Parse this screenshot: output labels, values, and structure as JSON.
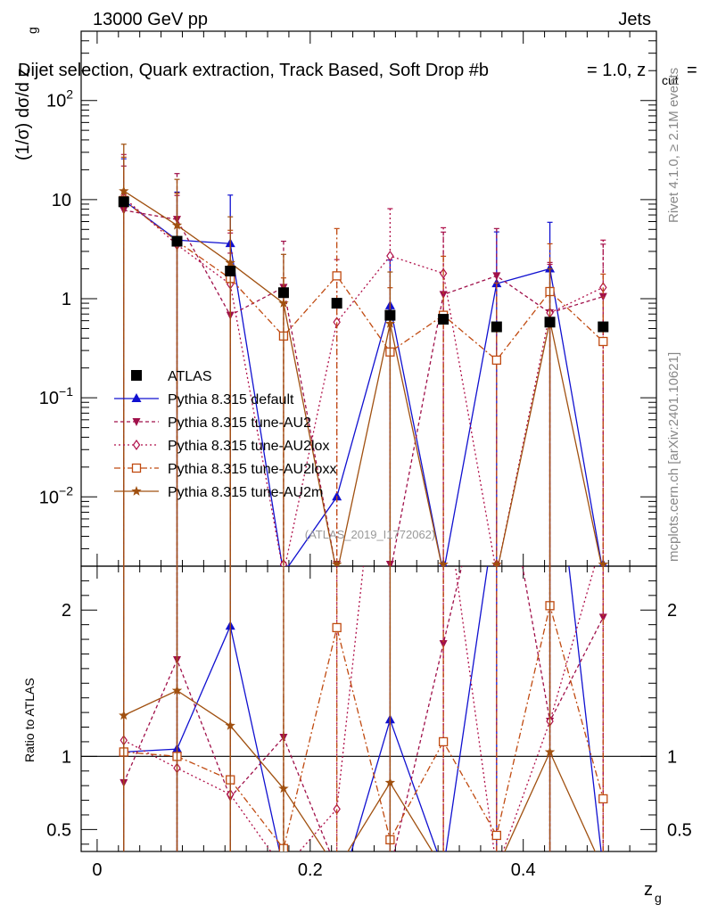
{
  "header": {
    "left": "13000 GeV pp",
    "right": "Jets",
    "title": "Dijet selection, Quark extraction, Track Based, Soft Drop #b",
    "title_tail": "= 1.0, z",
    "title_sub": "cut",
    "title_end": "="
  },
  "side": {
    "rivet": "Rivet 4.1.0, ≥ 2.1M events",
    "mcplots": "mcplots.cern.ch [arXiv:2401.10621]"
  },
  "watermark": "(ATLAS_2019_I1772062)",
  "colors": {
    "ATLAS": "#000000",
    "default": "#1010d0",
    "AU2": "#a0104a",
    "AU2lox": "#b0104a",
    "AU2loxx": "#c04a10",
    "AU2m": "#a05010"
  },
  "chart_data": {
    "type": "line",
    "main": {
      "ylabel": "(1/σ) dσ/d z",
      "ylabel_sub": "g",
      "yscale": "log",
      "ylim": [
        0.002,
        500
      ],
      "ytick_labels": [
        "10^-2",
        "10^-1",
        "1",
        "10",
        "10^2"
      ]
    },
    "ratio": {
      "ylabel": "Ratio to ATLAS",
      "ylim": [
        0.35,
        2.3
      ],
      "ytick_labels": [
        "0.5",
        "1",
        "2"
      ]
    },
    "x": {
      "label": "z",
      "label_sub": "g",
      "lim": [
        -0.015,
        0.525
      ],
      "tick_labels": [
        "0",
        "0.2",
        "0.4"
      ],
      "bin_centers": [
        0.025,
        0.075,
        0.125,
        0.175,
        0.225,
        0.275,
        0.325,
        0.375,
        0.425,
        0.475
      ]
    },
    "legend": [
      {
        "key": "ATLAS",
        "label": "ATLAS"
      },
      {
        "key": "default",
        "label": "Pythia 8.315 default"
      },
      {
        "key": "AU2",
        "label": "Pythia 8.315 tune-AU2"
      },
      {
        "key": "AU2lox",
        "label": "Pythia 8.315 tune-AU2lox"
      },
      {
        "key": "AU2loxx",
        "label": "Pythia 8.315 tune-AU2loxx"
      },
      {
        "key": "AU2m",
        "label": "Pythia 8.315 tune-AU2m"
      }
    ],
    "series": [
      {
        "key": "ATLAS",
        "name": "ATLAS",
        "marker": "square",
        "dash": "",
        "values": [
          9.5,
          3.8,
          1.9,
          1.15,
          0.9,
          0.68,
          0.62,
          0.52,
          0.58,
          0.52
        ],
        "err_up": [
          0,
          0,
          0,
          0,
          0,
          0,
          0,
          0,
          0,
          0
        ],
        "err_down": [
          0,
          0,
          0,
          0,
          0,
          0,
          0,
          0,
          0,
          0
        ]
      },
      {
        "key": "default",
        "name": "Pythia 8.315 default",
        "marker": "triangle-up",
        "dash": "",
        "values": [
          9.8,
          3.9,
          3.6,
          0,
          0.01,
          0.85,
          0,
          1.42,
          2.0,
          0
        ],
        "err_up": [
          16,
          8,
          7.5,
          0,
          0,
          1.6,
          0,
          3.3,
          3.9,
          0
        ],
        "err_down": [
          9.8,
          3.9,
          3.6,
          0,
          0.01,
          0.85,
          0,
          1.42,
          2.0,
          0
        ]
      },
      {
        "key": "AU2",
        "name": "Pythia 8.315 tune-AU2",
        "marker": "triangle-down",
        "dash": "4,3",
        "values": [
          7.8,
          6.3,
          0.68,
          1.3,
          0,
          0,
          1.1,
          1.7,
          0.72,
          1.05
        ],
        "err_up": [
          14,
          12,
          2.2,
          2.5,
          0,
          0,
          3.6,
          3.4,
          1.6,
          2.5
        ],
        "err_down": [
          7.8,
          6.3,
          0.68,
          1.3,
          0,
          0,
          1.1,
          1.7,
          0.72,
          1.05
        ]
      },
      {
        "key": "AU2lox",
        "name": "Pythia 8.315 tune-AU2lox",
        "marker": "diamond",
        "dash": "2,3",
        "values": [
          10.5,
          3.5,
          1.4,
          0,
          0.58,
          2.7,
          1.8,
          0,
          0.72,
          1.3
        ],
        "err_up": [
          18,
          7.5,
          3.2,
          0,
          1.9,
          5.4,
          3.4,
          0,
          1.5,
          2.6
        ],
        "err_down": [
          10.5,
          3.5,
          1.4,
          0,
          0.58,
          2.7,
          1.8,
          0,
          0.72,
          1.3
        ]
      },
      {
        "key": "AU2loxx",
        "name": "Pythia 8.315 tune-AU2loxx",
        "marker": "square-open",
        "dash": "7,3,2,3",
        "values": [
          9.8,
          3.8,
          1.6,
          0.42,
          1.7,
          0.29,
          0.68,
          0.24,
          1.18,
          0.37
        ],
        "err_up": [
          17,
          7.8,
          3.3,
          1.2,
          3.4,
          1.0,
          2.0,
          1.2,
          2.4,
          1.4
        ],
        "err_down": [
          9.8,
          3.8,
          1.6,
          0.42,
          1.7,
          0.29,
          0.68,
          0.24,
          1.18,
          0.37
        ]
      },
      {
        "key": "AU2m",
        "name": "Pythia 8.315 tune-AU2m",
        "marker": "star",
        "dash": "",
        "values": [
          12.2,
          5.5,
          2.3,
          0.9,
          0,
          0.56,
          0,
          0,
          0.6,
          0
        ],
        "err_up": [
          24,
          10.5,
          4.4,
          1.9,
          0,
          1.3,
          0,
          0,
          1.4,
          0
        ],
        "err_down": [
          12.2,
          5.5,
          2.3,
          0.9,
          0,
          0.56,
          0,
          0,
          0.6,
          0
        ]
      }
    ],
    "ratio_series": [
      {
        "key": "default",
        "values": [
          1.03,
          1.05,
          1.89,
          0,
          0.011,
          1.25,
          0,
          2.72,
          3.45,
          0
        ]
      },
      {
        "key": "AU2",
        "values": [
          0.82,
          1.66,
          0.72,
          1.13,
          0,
          0,
          1.77,
          3.3,
          1.24,
          1.95
        ]
      },
      {
        "key": "AU2lox",
        "values": [
          1.11,
          0.92,
          0.74,
          0,
          0.64,
          3.97,
          2.9,
          0,
          1.24,
          2.5
        ]
      },
      {
        "key": "AU2loxx",
        "values": [
          1.03,
          1.0,
          0.84,
          0.37,
          1.88,
          0.43,
          1.1,
          0.46,
          2.03,
          0.71
        ]
      },
      {
        "key": "AU2m",
        "values": [
          1.28,
          1.45,
          1.21,
          0.78,
          0,
          0.82,
          0,
          0,
          1.03,
          0
        ]
      }
    ]
  }
}
